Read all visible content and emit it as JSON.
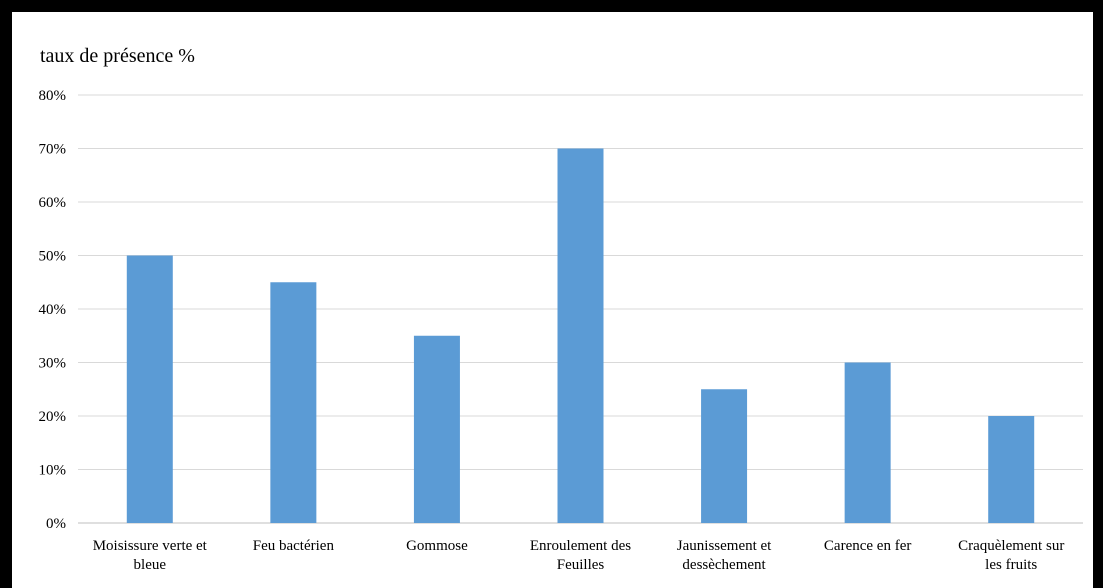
{
  "chart_data": {
    "type": "bar",
    "ylabel": "taux de présence %",
    "categories": [
      [
        "Moisissure verte et",
        "bleue"
      ],
      [
        "Feu bactérien"
      ],
      [
        "Gommose"
      ],
      [
        "Enroulement des",
        "Feuilles"
      ],
      [
        "Jaunissement et",
        "dessèchement"
      ],
      [
        "Carence en fer"
      ],
      [
        "Craquèlement sur",
        "les fruits"
      ]
    ],
    "values": [
      50,
      45,
      35,
      70,
      25,
      30,
      20
    ],
    "ylim": [
      0,
      80
    ],
    "yticks": [
      "0%",
      "10%",
      "20%",
      "30%",
      "40%",
      "50%",
      "60%",
      "70%",
      "80%"
    ],
    "bar_color": "#5B9BD5",
    "grid": true
  }
}
